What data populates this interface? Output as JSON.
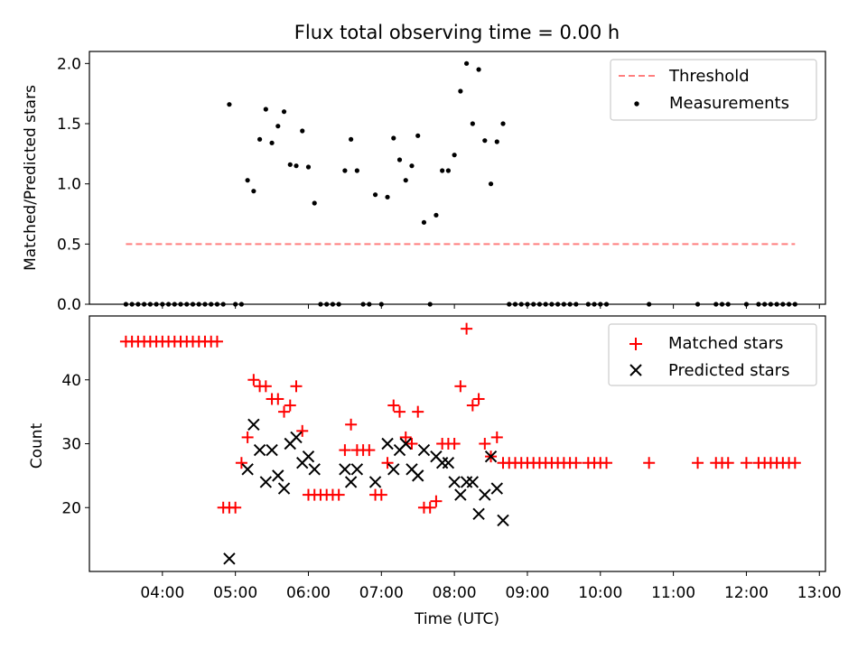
{
  "chart_data": [
    {
      "type": "scatter",
      "title": "Flux total observing time = 0.00 h",
      "xlabel": "",
      "ylabel": "Matched/Predicted stars",
      "ylim": [
        0,
        2.1
      ],
      "yticks": [
        "0.0",
        "0.5",
        "1.0",
        "1.5",
        "2.0"
      ],
      "legend_position": "top-right",
      "threshold": {
        "name": "Threshold",
        "value": 0.5,
        "x_range": [
          "03:30",
          "12:40"
        ],
        "color": "#ff7f7f",
        "style": "dashed"
      },
      "series": [
        {
          "name": "Measurements",
          "marker": "dot",
          "color": "#000000",
          "points": [
            [
              "03:30",
              0
            ],
            [
              "03:35",
              0
            ],
            [
              "03:40",
              0
            ],
            [
              "03:45",
              0
            ],
            [
              "03:50",
              0
            ],
            [
              "03:55",
              0
            ],
            [
              "04:00",
              0
            ],
            [
              "04:05",
              0
            ],
            [
              "04:10",
              0
            ],
            [
              "04:15",
              0
            ],
            [
              "04:20",
              0
            ],
            [
              "04:25",
              0
            ],
            [
              "04:30",
              0
            ],
            [
              "04:35",
              0
            ],
            [
              "04:40",
              0
            ],
            [
              "04:45",
              0
            ],
            [
              "04:50",
              0
            ],
            [
              "04:55",
              1.66
            ],
            [
              "05:00",
              0
            ],
            [
              "05:05",
              0
            ],
            [
              "05:10",
              1.03
            ],
            [
              "05:15",
              0.94
            ],
            [
              "05:20",
              1.37
            ],
            [
              "05:25",
              1.62
            ],
            [
              "05:30",
              1.34
            ],
            [
              "05:35",
              1.48
            ],
            [
              "05:40",
              1.6
            ],
            [
              "05:45",
              1.16
            ],
            [
              "05:50",
              1.15
            ],
            [
              "05:55",
              1.44
            ],
            [
              "06:00",
              1.14
            ],
            [
              "06:05",
              0.84
            ],
            [
              "06:10",
              0
            ],
            [
              "06:15",
              0
            ],
            [
              "06:20",
              0
            ],
            [
              "06:25",
              0
            ],
            [
              "06:30",
              1.11
            ],
            [
              "06:35",
              1.37
            ],
            [
              "06:40",
              1.11
            ],
            [
              "06:45",
              0
            ],
            [
              "06:50",
              0
            ],
            [
              "06:55",
              0.91
            ],
            [
              "07:00",
              0
            ],
            [
              "07:05",
              0.89
            ],
            [
              "07:10",
              1.38
            ],
            [
              "07:15",
              1.2
            ],
            [
              "07:20",
              1.03
            ],
            [
              "07:25",
              1.15
            ],
            [
              "07:30",
              1.4
            ],
            [
              "07:35",
              0.68
            ],
            [
              "07:40",
              0
            ],
            [
              "07:45",
              0.74
            ],
            [
              "07:50",
              1.11
            ],
            [
              "07:55",
              1.11
            ],
            [
              "08:00",
              1.24
            ],
            [
              "08:05",
              1.77
            ],
            [
              "08:10",
              2.0
            ],
            [
              "08:15",
              1.5
            ],
            [
              "08:20",
              1.95
            ],
            [
              "08:25",
              1.36
            ],
            [
              "08:30",
              1.0
            ],
            [
              "08:35",
              1.35
            ],
            [
              "08:40",
              1.5
            ],
            [
              "08:45",
              0
            ],
            [
              "08:50",
              0
            ],
            [
              "08:55",
              0
            ],
            [
              "09:00",
              0
            ],
            [
              "09:05",
              0
            ],
            [
              "09:10",
              0
            ],
            [
              "09:15",
              0
            ],
            [
              "09:20",
              0
            ],
            [
              "09:25",
              0
            ],
            [
              "09:30",
              0
            ],
            [
              "09:35",
              0
            ],
            [
              "09:40",
              0
            ],
            [
              "09:50",
              0
            ],
            [
              "09:55",
              0
            ],
            [
              "10:00",
              0
            ],
            [
              "10:05",
              0
            ],
            [
              "10:40",
              0
            ],
            [
              "11:20",
              0
            ],
            [
              "11:35",
              0
            ],
            [
              "11:40",
              0
            ],
            [
              "11:45",
              0
            ],
            [
              "12:00",
              0
            ],
            [
              "12:10",
              0
            ],
            [
              "12:15",
              0
            ],
            [
              "12:20",
              0
            ],
            [
              "12:25",
              0
            ],
            [
              "12:30",
              0
            ],
            [
              "12:35",
              0
            ],
            [
              "12:40",
              0
            ]
          ]
        }
      ]
    },
    {
      "type": "scatter",
      "title": "",
      "xlabel": "Time (UTC)",
      "ylabel": "Count",
      "xlim": [
        "03:00",
        "13:05"
      ],
      "xticks": [
        "04:00",
        "05:00",
        "06:00",
        "07:00",
        "08:00",
        "09:00",
        "10:00",
        "11:00",
        "12:00",
        "13:00"
      ],
      "ylim": [
        10,
        50
      ],
      "yticks": [
        "20",
        "30",
        "40"
      ],
      "legend_position": "top-right",
      "series": [
        {
          "name": "Matched stars",
          "marker": "plus",
          "color": "#ff0000",
          "points": [
            [
              "03:30",
              46
            ],
            [
              "03:35",
              46
            ],
            [
              "03:40",
              46
            ],
            [
              "03:45",
              46
            ],
            [
              "03:50",
              46
            ],
            [
              "03:55",
              46
            ],
            [
              "04:00",
              46
            ],
            [
              "04:05",
              46
            ],
            [
              "04:10",
              46
            ],
            [
              "04:15",
              46
            ],
            [
              "04:20",
              46
            ],
            [
              "04:25",
              46
            ],
            [
              "04:30",
              46
            ],
            [
              "04:35",
              46
            ],
            [
              "04:40",
              46
            ],
            [
              "04:45",
              46
            ],
            [
              "04:50",
              20
            ],
            [
              "04:55",
              20
            ],
            [
              "05:00",
              20
            ],
            [
              "05:05",
              27
            ],
            [
              "05:10",
              31
            ],
            [
              "05:15",
              40
            ],
            [
              "05:20",
              39
            ],
            [
              "05:25",
              39
            ],
            [
              "05:30",
              37
            ],
            [
              "05:35",
              37
            ],
            [
              "05:40",
              35
            ],
            [
              "05:45",
              36
            ],
            [
              "05:50",
              39
            ],
            [
              "05:55",
              32
            ],
            [
              "06:00",
              22
            ],
            [
              "06:05",
              22
            ],
            [
              "06:10",
              22
            ],
            [
              "06:15",
              22
            ],
            [
              "06:20",
              22
            ],
            [
              "06:25",
              22
            ],
            [
              "06:30",
              29
            ],
            [
              "06:35",
              33
            ],
            [
              "06:40",
              29
            ],
            [
              "06:45",
              29
            ],
            [
              "06:50",
              29
            ],
            [
              "06:55",
              22
            ],
            [
              "07:00",
              22
            ],
            [
              "07:05",
              27
            ],
            [
              "07:10",
              36
            ],
            [
              "07:15",
              35
            ],
            [
              "07:20",
              31
            ],
            [
              "07:25",
              30
            ],
            [
              "07:30",
              35
            ],
            [
              "07:35",
              20
            ],
            [
              "07:40",
              20
            ],
            [
              "07:45",
              21
            ],
            [
              "07:50",
              30
            ],
            [
              "07:55",
              30
            ],
            [
              "08:00",
              30
            ],
            [
              "08:05",
              39
            ],
            [
              "08:10",
              48
            ],
            [
              "08:15",
              36
            ],
            [
              "08:20",
              37
            ],
            [
              "08:25",
              30
            ],
            [
              "08:30",
              28
            ],
            [
              "08:35",
              31
            ],
            [
              "08:40",
              27
            ],
            [
              "08:45",
              27
            ],
            [
              "08:50",
              27
            ],
            [
              "08:55",
              27
            ],
            [
              "09:00",
              27
            ],
            [
              "09:05",
              27
            ],
            [
              "09:10",
              27
            ],
            [
              "09:15",
              27
            ],
            [
              "09:20",
              27
            ],
            [
              "09:25",
              27
            ],
            [
              "09:30",
              27
            ],
            [
              "09:35",
              27
            ],
            [
              "09:40",
              27
            ],
            [
              "09:50",
              27
            ],
            [
              "09:55",
              27
            ],
            [
              "10:00",
              27
            ],
            [
              "10:05",
              27
            ],
            [
              "10:40",
              27
            ],
            [
              "11:20",
              27
            ],
            [
              "11:35",
              27
            ],
            [
              "11:40",
              27
            ],
            [
              "11:45",
              27
            ],
            [
              "12:00",
              27
            ],
            [
              "12:10",
              27
            ],
            [
              "12:15",
              27
            ],
            [
              "12:20",
              27
            ],
            [
              "12:25",
              27
            ],
            [
              "12:30",
              27
            ],
            [
              "12:35",
              27
            ],
            [
              "12:40",
              27
            ]
          ]
        },
        {
          "name": "Predicted stars",
          "marker": "x",
          "color": "#000000",
          "points": [
            [
              "04:55",
              12
            ],
            [
              "05:10",
              26
            ],
            [
              "05:15",
              33
            ],
            [
              "05:20",
              29
            ],
            [
              "05:25",
              24
            ],
            [
              "05:30",
              29
            ],
            [
              "05:35",
              25
            ],
            [
              "05:40",
              23
            ],
            [
              "05:45",
              30
            ],
            [
              "05:50",
              31
            ],
            [
              "05:55",
              27
            ],
            [
              "06:00",
              28
            ],
            [
              "06:05",
              26
            ],
            [
              "06:30",
              26
            ],
            [
              "06:35",
              24
            ],
            [
              "06:40",
              26
            ],
            [
              "06:55",
              24
            ],
            [
              "07:05",
              30
            ],
            [
              "07:10",
              26
            ],
            [
              "07:15",
              29
            ],
            [
              "07:20",
              30
            ],
            [
              "07:25",
              26
            ],
            [
              "07:30",
              25
            ],
            [
              "07:35",
              29
            ],
            [
              "07:45",
              28
            ],
            [
              "07:50",
              27
            ],
            [
              "07:55",
              27
            ],
            [
              "08:00",
              24
            ],
            [
              "08:05",
              22
            ],
            [
              "08:10",
              24
            ],
            [
              "08:15",
              24
            ],
            [
              "08:20",
              19
            ],
            [
              "08:25",
              22
            ],
            [
              "08:30",
              28
            ],
            [
              "08:35",
              23
            ],
            [
              "08:40",
              18
            ]
          ]
        }
      ]
    }
  ]
}
